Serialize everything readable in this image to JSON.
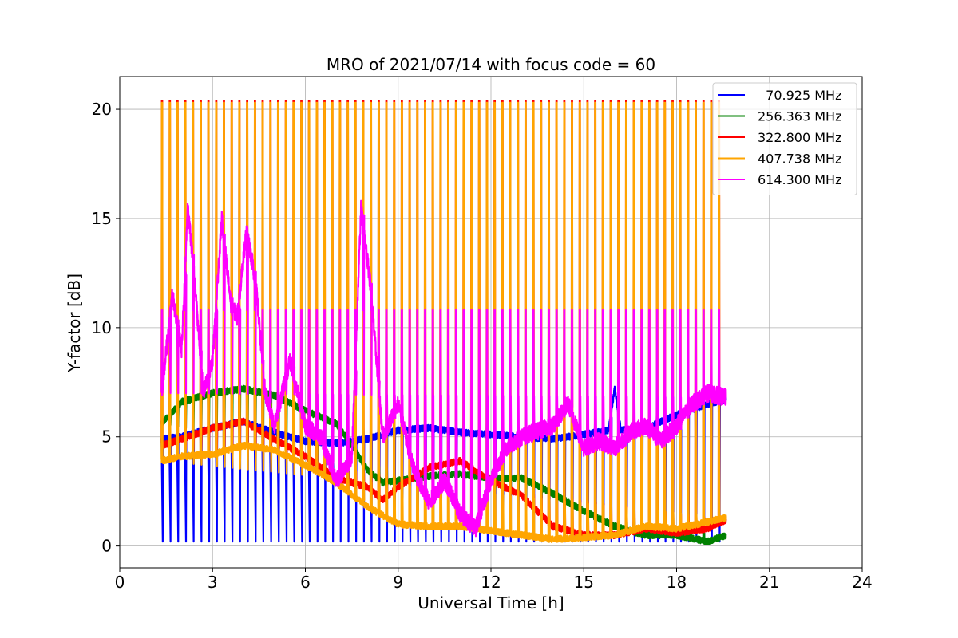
{
  "chart_data": {
    "type": "line",
    "title": "MRO of 2021/07/14 with focus code = 60",
    "xlabel": "Universal Time [h]",
    "ylabel": "Y-factor [dB]",
    "xlim": [
      0,
      24
    ],
    "ylim": [
      -1,
      21.5
    ],
    "xticks": [
      0,
      3,
      6,
      9,
      12,
      15,
      18,
      21,
      24
    ],
    "yticks": [
      0,
      5,
      10,
      15,
      20
    ],
    "grid": true,
    "legend_position": "top-right",
    "sweep": {
      "start": 1.35,
      "end": 19.6,
      "period": 0.25
    },
    "series": [
      {
        "name": "  70.925 MHz",
        "color": "#0000ff",
        "baseline": [
          [
            1.35,
            4.9
          ],
          [
            2,
            5.0
          ],
          [
            3,
            5.4
          ],
          [
            4,
            5.7
          ],
          [
            5,
            5.2
          ],
          [
            6,
            4.8
          ],
          [
            7,
            4.7
          ],
          [
            8,
            4.9
          ],
          [
            9,
            5.3
          ],
          [
            10,
            5.4
          ],
          [
            11,
            5.2
          ],
          [
            12,
            5.1
          ],
          [
            13,
            5.0
          ],
          [
            14,
            4.9
          ],
          [
            15,
            5.1
          ],
          [
            15.8,
            5.3
          ],
          [
            16,
            7.2
          ],
          [
            16.2,
            5.3
          ],
          [
            17,
            5.4
          ],
          [
            18,
            6.0
          ],
          [
            19,
            6.5
          ],
          [
            19.6,
            6.7
          ]
        ],
        "peak": [
          [
            1.35,
            4.9
          ],
          [
            19.6,
            6.7
          ]
        ],
        "dip": [
          [
            1.35,
            0.2
          ],
          [
            19.6,
            0.2
          ]
        ],
        "noise": 0.15
      },
      {
        "name": "256.363 MHz",
        "color": "#008000",
        "baseline": [
          [
            1.35,
            5.6
          ],
          [
            2,
            6.6
          ],
          [
            3,
            7.0
          ],
          [
            4,
            7.2
          ],
          [
            5,
            6.9
          ],
          [
            6,
            6.2
          ],
          [
            7,
            5.6
          ],
          [
            7.5,
            4.6
          ],
          [
            8,
            3.5
          ],
          [
            8.5,
            2.9
          ],
          [
            9,
            3.0
          ],
          [
            10,
            3.2
          ],
          [
            11,
            3.3
          ],
          [
            12,
            3.1
          ],
          [
            13,
            3.1
          ],
          [
            14,
            2.4
          ],
          [
            15,
            1.6
          ],
          [
            16,
            0.9
          ],
          [
            17,
            0.5
          ],
          [
            18,
            0.5
          ],
          [
            19,
            0.2
          ],
          [
            19.6,
            0.5
          ]
        ],
        "peak": [
          [
            1.35,
            5.6
          ],
          [
            19.6,
            0.5
          ]
        ],
        "dip": [
          [
            1.35,
            5.6
          ],
          [
            19.6,
            0.5
          ]
        ],
        "noise": 0.15
      },
      {
        "name": "322.800 MHz",
        "color": "#ff0000",
        "baseline": [
          [
            1.35,
            4.6
          ],
          [
            2,
            4.9
          ],
          [
            3,
            5.4
          ],
          [
            4,
            5.7
          ],
          [
            5,
            4.9
          ],
          [
            6,
            4.1
          ],
          [
            7,
            3.1
          ],
          [
            8,
            2.7
          ],
          [
            8.5,
            2.1
          ],
          [
            9,
            2.7
          ],
          [
            10,
            3.6
          ],
          [
            11,
            3.9
          ],
          [
            12,
            3.0
          ],
          [
            13,
            2.3
          ],
          [
            14,
            0.9
          ],
          [
            15,
            0.5
          ],
          [
            16,
            0.5
          ],
          [
            17,
            0.8
          ],
          [
            18,
            0.6
          ],
          [
            19,
            0.8
          ],
          [
            19.6,
            1.2
          ]
        ],
        "peak": [
          [
            1.35,
            20.4
          ],
          [
            19.6,
            20.4
          ]
        ],
        "dip": [
          [
            1.35,
            4.6
          ],
          [
            19.6,
            1.2
          ]
        ],
        "noise": 0.15
      },
      {
        "name": "407.738 MHz",
        "color": "#ffa500",
        "baseline": [
          [
            1.35,
            3.9
          ],
          [
            2,
            4.1
          ],
          [
            3,
            4.2
          ],
          [
            4,
            4.6
          ],
          [
            5,
            4.4
          ],
          [
            6,
            3.7
          ],
          [
            7,
            2.9
          ],
          [
            8,
            1.8
          ],
          [
            9,
            1.0
          ],
          [
            10,
            0.9
          ],
          [
            11,
            0.9
          ],
          [
            12,
            0.7
          ],
          [
            13,
            0.5
          ],
          [
            14,
            0.3
          ],
          [
            15,
            0.4
          ],
          [
            16,
            0.5
          ],
          [
            17,
            0.9
          ],
          [
            18,
            0.8
          ],
          [
            19,
            1.1
          ],
          [
            19.6,
            1.3
          ]
        ],
        "peak": [
          [
            1.35,
            20.3
          ],
          [
            19.6,
            20.3
          ]
        ],
        "dip": [
          [
            1.35,
            3.9
          ],
          [
            19.6,
            1.3
          ]
        ],
        "noise": 0.15
      },
      {
        "name": "614.300 MHz",
        "color": "#ff00ff",
        "baseline": [
          [
            1.35,
            7.0
          ],
          [
            1.7,
            11.5
          ],
          [
            2.0,
            9.0
          ],
          [
            2.2,
            15.5
          ],
          [
            2.4,
            12.5
          ],
          [
            2.7,
            7.0
          ],
          [
            3.0,
            8.5
          ],
          [
            3.3,
            15.0
          ],
          [
            3.6,
            11.0
          ],
          [
            3.8,
            10.5
          ],
          [
            4.1,
            14.5
          ],
          [
            4.4,
            12.0
          ],
          [
            4.7,
            7.0
          ],
          [
            5.0,
            5.5
          ],
          [
            5.5,
            8.5
          ],
          [
            6.0,
            5.5
          ],
          [
            6.5,
            5.0
          ],
          [
            7.0,
            3.0
          ],
          [
            7.5,
            4.0
          ],
          [
            7.8,
            15.5
          ],
          [
            8.1,
            12.0
          ],
          [
            8.5,
            5.0
          ],
          [
            9.0,
            6.5
          ],
          [
            9.5,
            3.5
          ],
          [
            10.0,
            2.0
          ],
          [
            10.5,
            3.0
          ],
          [
            11.0,
            1.5
          ],
          [
            11.5,
            0.8
          ],
          [
            12.0,
            3.0
          ],
          [
            12.5,
            4.5
          ],
          [
            13.0,
            5.0
          ],
          [
            14.0,
            5.5
          ],
          [
            14.5,
            6.5
          ],
          [
            15.0,
            4.5
          ],
          [
            15.5,
            4.8
          ],
          [
            16.0,
            4.5
          ],
          [
            16.5,
            5.2
          ],
          [
            17.0,
            5.5
          ],
          [
            17.5,
            4.8
          ],
          [
            18.0,
            5.5
          ],
          [
            18.5,
            6.5
          ],
          [
            19.0,
            7.0
          ],
          [
            19.6,
            6.8
          ]
        ],
        "peak": [
          [
            1.35,
            10.8
          ],
          [
            19.6,
            10.8
          ]
        ],
        "dip": [
          [
            1.35,
            7.0
          ],
          [
            19.6,
            6.8
          ]
        ],
        "noise": 0.4
      }
    ]
  }
}
